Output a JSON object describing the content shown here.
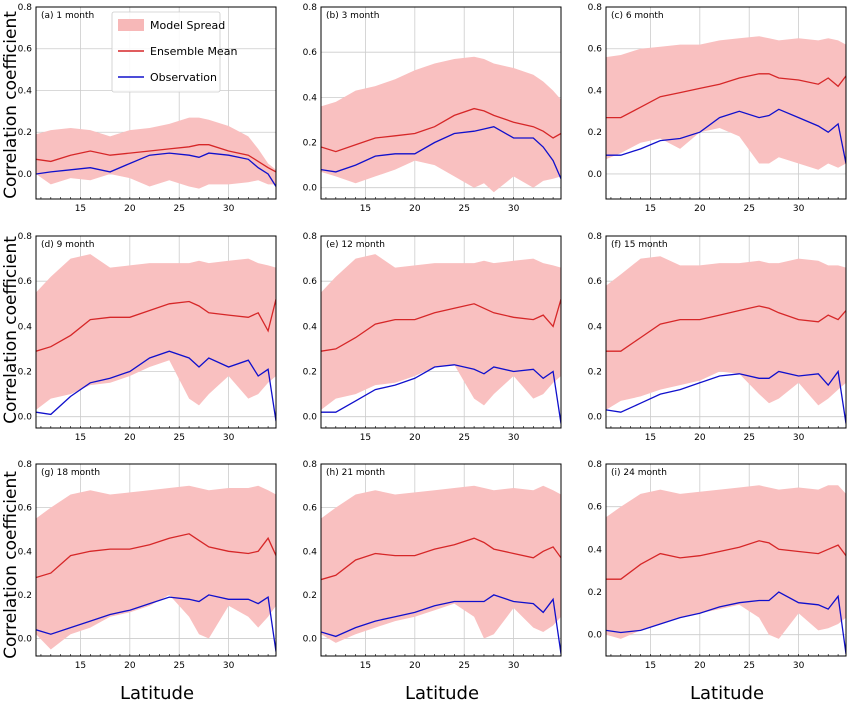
{
  "figure": {
    "ylabel": "Correlation coefficient",
    "xlabel": "Latitude",
    "legend": {
      "placement": "top-center of panel (a)",
      "entries": [
        {
          "label": "Model Spread",
          "kind": "patch",
          "color": "#f7b8b8"
        },
        {
          "label": "Ensemble Mean",
          "kind": "line",
          "color": "#d62728"
        },
        {
          "label": "Observation",
          "kind": "line",
          "color": "#1010cc"
        }
      ]
    },
    "colors": {
      "spread": "#f9c0c0",
      "mean": "#d62728",
      "obs": "#1010cc",
      "grid": "#cccccc"
    }
  },
  "chart_data": [
    {
      "type": "line",
      "title": "(a) 1 month",
      "x": [
        10.5,
        12,
        14,
        16,
        18,
        20,
        22,
        24,
        26,
        27,
        28,
        30,
        32,
        33,
        34,
        34.8
      ],
      "xticks": [
        15,
        20,
        25,
        30
      ],
      "xlim": [
        10.5,
        34.8
      ],
      "yticks": [
        0.0,
        0.2,
        0.4,
        0.6,
        0.8
      ],
      "ylim": [
        -0.12,
        0.8
      ],
      "grid": true,
      "series": [
        {
          "name": "Model Spread",
          "kind": "band",
          "upper": [
            0.19,
            0.21,
            0.22,
            0.21,
            0.18,
            0.21,
            0.22,
            0.24,
            0.27,
            0.27,
            0.26,
            0.23,
            0.18,
            0.12,
            0.05,
            0.02
          ],
          "lower": [
            0.0,
            -0.05,
            -0.02,
            -0.03,
            0.0,
            -0.02,
            -0.06,
            -0.03,
            -0.06,
            -0.07,
            -0.05,
            -0.05,
            -0.04,
            -0.03,
            -0.05,
            -0.05
          ]
        },
        {
          "name": "Ensemble Mean",
          "values": [
            0.07,
            0.06,
            0.09,
            0.11,
            0.09,
            0.1,
            0.11,
            0.12,
            0.13,
            0.14,
            0.14,
            0.11,
            0.09,
            0.06,
            0.03,
            0.01
          ]
        },
        {
          "name": "Observation",
          "values": [
            0.0,
            0.01,
            0.02,
            0.03,
            0.01,
            0.05,
            0.09,
            0.1,
            0.09,
            0.08,
            0.1,
            0.09,
            0.07,
            0.03,
            0.0,
            -0.06
          ]
        }
      ]
    },
    {
      "type": "line",
      "title": "(b) 3 month",
      "x": [
        10.5,
        12,
        14,
        16,
        18,
        20,
        22,
        24,
        26,
        27,
        28,
        30,
        32,
        33,
        34,
        34.8
      ],
      "xticks": [
        15,
        20,
        25,
        30
      ],
      "xlim": [
        10.5,
        34.8
      ],
      "yticks": [
        0.0,
        0.2,
        0.4,
        0.6,
        0.8
      ],
      "ylim": [
        -0.05,
        0.8
      ],
      "grid": true,
      "series": [
        {
          "name": "Model Spread",
          "kind": "band",
          "upper": [
            0.36,
            0.38,
            0.43,
            0.45,
            0.48,
            0.52,
            0.55,
            0.57,
            0.58,
            0.57,
            0.55,
            0.53,
            0.5,
            0.47,
            0.43,
            0.39
          ],
          "lower": [
            0.07,
            0.05,
            0.02,
            0.05,
            0.08,
            0.12,
            0.1,
            0.05,
            0.0,
            0.02,
            -0.02,
            0.05,
            0.0,
            0.03,
            0.04,
            0.05
          ]
        },
        {
          "name": "Ensemble Mean",
          "values": [
            0.18,
            0.16,
            0.19,
            0.22,
            0.23,
            0.24,
            0.27,
            0.32,
            0.35,
            0.34,
            0.32,
            0.29,
            0.27,
            0.25,
            0.22,
            0.24
          ]
        },
        {
          "name": "Observation",
          "values": [
            0.08,
            0.07,
            0.1,
            0.14,
            0.15,
            0.15,
            0.2,
            0.24,
            0.25,
            0.26,
            0.27,
            0.22,
            0.22,
            0.18,
            0.12,
            0.04
          ]
        }
      ]
    },
    {
      "type": "line",
      "title": "(c) 6 month",
      "x": [
        10.5,
        12,
        14,
        16,
        18,
        20,
        22,
        24,
        26,
        27,
        28,
        30,
        32,
        33,
        34,
        34.8
      ],
      "xticks": [
        15,
        20,
        25,
        30
      ],
      "xlim": [
        10.5,
        34.8
      ],
      "yticks": [
        0.0,
        0.2,
        0.4,
        0.6,
        0.8
      ],
      "ylim": [
        -0.12,
        0.8
      ],
      "grid": true,
      "series": [
        {
          "name": "Model Spread",
          "kind": "band",
          "upper": [
            0.56,
            0.57,
            0.6,
            0.61,
            0.62,
            0.62,
            0.64,
            0.65,
            0.66,
            0.65,
            0.64,
            0.65,
            0.64,
            0.65,
            0.64,
            0.62
          ],
          "lower": [
            0.07,
            0.1,
            0.15,
            0.17,
            0.12,
            0.2,
            0.22,
            0.18,
            0.05,
            0.05,
            0.08,
            0.05,
            0.02,
            0.05,
            0.03,
            0.05
          ]
        },
        {
          "name": "Ensemble Mean",
          "values": [
            0.27,
            0.27,
            0.32,
            0.37,
            0.39,
            0.41,
            0.43,
            0.46,
            0.48,
            0.48,
            0.46,
            0.45,
            0.43,
            0.46,
            0.42,
            0.47
          ]
        },
        {
          "name": "Observation",
          "values": [
            0.09,
            0.09,
            0.12,
            0.16,
            0.17,
            0.2,
            0.27,
            0.3,
            0.27,
            0.28,
            0.31,
            0.27,
            0.23,
            0.2,
            0.24,
            0.05
          ]
        }
      ]
    },
    {
      "type": "line",
      "title": "(d) 9 month",
      "x": [
        10.5,
        12,
        14,
        16,
        18,
        20,
        22,
        24,
        26,
        27,
        28,
        30,
        32,
        33,
        34,
        34.8
      ],
      "xticks": [
        15,
        20,
        25,
        30
      ],
      "xlim": [
        10.5,
        34.8
      ],
      "yticks": [
        0.0,
        0.2,
        0.4,
        0.6,
        0.8
      ],
      "ylim": [
        -0.05,
        0.8
      ],
      "grid": true,
      "series": [
        {
          "name": "Model Spread",
          "kind": "band",
          "upper": [
            0.55,
            0.62,
            0.7,
            0.72,
            0.66,
            0.67,
            0.68,
            0.68,
            0.68,
            0.69,
            0.68,
            0.69,
            0.7,
            0.68,
            0.67,
            0.66
          ],
          "lower": [
            0.03,
            0.08,
            0.1,
            0.14,
            0.15,
            0.18,
            0.22,
            0.25,
            0.08,
            0.05,
            0.1,
            0.18,
            0.08,
            0.1,
            0.15,
            0.18
          ]
        },
        {
          "name": "Ensemble Mean",
          "values": [
            0.29,
            0.31,
            0.36,
            0.43,
            0.44,
            0.44,
            0.47,
            0.5,
            0.51,
            0.49,
            0.46,
            0.45,
            0.44,
            0.46,
            0.38,
            0.52
          ]
        },
        {
          "name": "Observation",
          "values": [
            0.02,
            0.01,
            0.09,
            0.15,
            0.17,
            0.2,
            0.26,
            0.29,
            0.26,
            0.22,
            0.26,
            0.22,
            0.25,
            0.18,
            0.21,
            -0.02
          ]
        }
      ]
    },
    {
      "type": "line",
      "title": "(e) 12 month",
      "x": [
        10.5,
        12,
        14,
        16,
        18,
        20,
        22,
        24,
        26,
        27,
        28,
        30,
        32,
        33,
        34,
        34.8
      ],
      "xticks": [
        15,
        20,
        25,
        30
      ],
      "xlim": [
        10.5,
        34.8
      ],
      "yticks": [
        0.0,
        0.2,
        0.4,
        0.6,
        0.8
      ],
      "ylim": [
        -0.05,
        0.8
      ],
      "grid": true,
      "series": [
        {
          "name": "Model Spread",
          "kind": "band",
          "upper": [
            0.55,
            0.62,
            0.7,
            0.72,
            0.66,
            0.67,
            0.68,
            0.68,
            0.68,
            0.69,
            0.68,
            0.69,
            0.7,
            0.68,
            0.67,
            0.66
          ],
          "lower": [
            0.03,
            0.08,
            0.1,
            0.14,
            0.15,
            0.18,
            0.22,
            0.23,
            0.08,
            0.05,
            0.1,
            0.18,
            0.08,
            0.1,
            0.15,
            0.18
          ]
        },
        {
          "name": "Ensemble Mean",
          "values": [
            0.29,
            0.3,
            0.35,
            0.41,
            0.43,
            0.43,
            0.46,
            0.48,
            0.5,
            0.48,
            0.46,
            0.44,
            0.43,
            0.45,
            0.4,
            0.52
          ]
        },
        {
          "name": "Observation",
          "values": [
            0.02,
            0.02,
            0.07,
            0.12,
            0.14,
            0.17,
            0.22,
            0.23,
            0.21,
            0.19,
            0.22,
            0.2,
            0.21,
            0.17,
            0.2,
            -0.03
          ]
        }
      ]
    },
    {
      "type": "line",
      "title": "(f) 15 month",
      "x": [
        10.5,
        12,
        14,
        16,
        18,
        20,
        22,
        24,
        26,
        27,
        28,
        30,
        32,
        33,
        34,
        34.8
      ],
      "xticks": [
        15,
        20,
        25,
        30
      ],
      "xlim": [
        10.5,
        34.8
      ],
      "yticks": [
        0.0,
        0.2,
        0.4,
        0.6,
        0.8
      ],
      "ylim": [
        -0.05,
        0.8
      ],
      "grid": true,
      "series": [
        {
          "name": "Model Spread",
          "kind": "band",
          "upper": [
            0.58,
            0.63,
            0.7,
            0.71,
            0.67,
            0.67,
            0.68,
            0.68,
            0.69,
            0.68,
            0.68,
            0.7,
            0.69,
            0.67,
            0.67,
            0.66
          ],
          "lower": [
            0.03,
            0.07,
            0.09,
            0.12,
            0.14,
            0.16,
            0.2,
            0.19,
            0.1,
            0.06,
            0.08,
            0.15,
            0.05,
            0.08,
            0.12,
            0.15
          ]
        },
        {
          "name": "Ensemble Mean",
          "values": [
            0.29,
            0.29,
            0.35,
            0.41,
            0.43,
            0.43,
            0.45,
            0.47,
            0.49,
            0.48,
            0.46,
            0.43,
            0.42,
            0.45,
            0.43,
            0.47
          ]
        },
        {
          "name": "Observation",
          "values": [
            0.03,
            0.02,
            0.06,
            0.1,
            0.12,
            0.15,
            0.18,
            0.19,
            0.17,
            0.17,
            0.2,
            0.18,
            0.19,
            0.14,
            0.2,
            -0.03
          ]
        }
      ]
    },
    {
      "type": "line",
      "title": "(g) 18 month",
      "x": [
        10.5,
        12,
        14,
        16,
        18,
        20,
        22,
        24,
        26,
        27,
        28,
        30,
        32,
        33,
        34,
        34.8
      ],
      "xticks": [
        15,
        20,
        25,
        30
      ],
      "xlim": [
        10.5,
        34.8
      ],
      "yticks": [
        0.0,
        0.2,
        0.4,
        0.6,
        0.8
      ],
      "ylim": [
        -0.08,
        0.8
      ],
      "grid": true,
      "series": [
        {
          "name": "Model Spread",
          "kind": "band",
          "upper": [
            0.55,
            0.6,
            0.66,
            0.68,
            0.66,
            0.67,
            0.68,
            0.69,
            0.7,
            0.69,
            0.68,
            0.69,
            0.69,
            0.7,
            0.68,
            0.66
          ],
          "lower": [
            0.02,
            -0.05,
            0.02,
            0.05,
            0.1,
            0.12,
            0.15,
            0.2,
            0.1,
            0.02,
            0.0,
            0.15,
            0.1,
            0.05,
            0.1,
            0.15
          ]
        },
        {
          "name": "Ensemble Mean",
          "values": [
            0.28,
            0.3,
            0.38,
            0.4,
            0.41,
            0.41,
            0.43,
            0.46,
            0.48,
            0.45,
            0.42,
            0.4,
            0.39,
            0.4,
            0.46,
            0.38
          ]
        },
        {
          "name": "Observation",
          "values": [
            0.04,
            0.02,
            0.05,
            0.08,
            0.11,
            0.13,
            0.16,
            0.19,
            0.18,
            0.17,
            0.2,
            0.18,
            0.18,
            0.16,
            0.19,
            -0.06
          ]
        }
      ]
    },
    {
      "type": "line",
      "title": "(h) 21 month",
      "x": [
        10.5,
        12,
        14,
        16,
        18,
        20,
        22,
        24,
        26,
        27,
        28,
        30,
        32,
        33,
        34,
        34.8
      ],
      "xticks": [
        15,
        20,
        25,
        30
      ],
      "xlim": [
        10.5,
        34.8
      ],
      "yticks": [
        0.0,
        0.2,
        0.4,
        0.6,
        0.8
      ],
      "ylim": [
        -0.08,
        0.8
      ],
      "grid": true,
      "series": [
        {
          "name": "Model Spread",
          "kind": "band",
          "upper": [
            0.55,
            0.6,
            0.66,
            0.68,
            0.66,
            0.67,
            0.68,
            0.69,
            0.7,
            0.69,
            0.68,
            0.69,
            0.68,
            0.7,
            0.68,
            0.66
          ],
          "lower": [
            0.02,
            -0.02,
            0.02,
            0.05,
            0.08,
            0.1,
            0.13,
            0.16,
            0.1,
            0.0,
            0.02,
            0.14,
            0.05,
            0.03,
            0.06,
            0.1
          ]
        },
        {
          "name": "Ensemble Mean",
          "values": [
            0.27,
            0.29,
            0.36,
            0.39,
            0.38,
            0.38,
            0.41,
            0.43,
            0.46,
            0.44,
            0.41,
            0.39,
            0.37,
            0.4,
            0.42,
            0.37
          ]
        },
        {
          "name": "Observation",
          "values": [
            0.03,
            0.01,
            0.05,
            0.08,
            0.1,
            0.12,
            0.15,
            0.17,
            0.17,
            0.17,
            0.2,
            0.17,
            0.16,
            0.12,
            0.18,
            -0.07
          ]
        }
      ]
    },
    {
      "type": "line",
      "title": "(i) 24 month",
      "x": [
        10.5,
        12,
        14,
        16,
        18,
        20,
        22,
        24,
        26,
        27,
        28,
        30,
        32,
        33,
        34,
        34.8
      ],
      "xticks": [
        15,
        20,
        25,
        30
      ],
      "xlim": [
        10.5,
        34.8
      ],
      "yticks": [
        0.0,
        0.2,
        0.4,
        0.6,
        0.8
      ],
      "ylim": [
        -0.1,
        0.8
      ],
      "grid": true,
      "series": [
        {
          "name": "Model Spread",
          "kind": "band",
          "upper": [
            0.55,
            0.6,
            0.66,
            0.68,
            0.66,
            0.67,
            0.68,
            0.69,
            0.7,
            0.69,
            0.68,
            0.69,
            0.68,
            0.7,
            0.7,
            0.66
          ],
          "lower": [
            0.0,
            -0.02,
            0.02,
            0.05,
            0.08,
            0.1,
            0.12,
            0.14,
            0.08,
            0.0,
            -0.02,
            0.1,
            0.02,
            0.03,
            0.05,
            0.08
          ]
        },
        {
          "name": "Ensemble Mean",
          "values": [
            0.26,
            0.26,
            0.33,
            0.38,
            0.36,
            0.37,
            0.39,
            0.41,
            0.44,
            0.43,
            0.4,
            0.39,
            0.38,
            0.4,
            0.42,
            0.37
          ]
        },
        {
          "name": "Observation",
          "values": [
            0.02,
            0.01,
            0.02,
            0.05,
            0.08,
            0.1,
            0.13,
            0.15,
            0.16,
            0.16,
            0.2,
            0.15,
            0.14,
            0.12,
            0.18,
            -0.09
          ]
        }
      ]
    }
  ]
}
